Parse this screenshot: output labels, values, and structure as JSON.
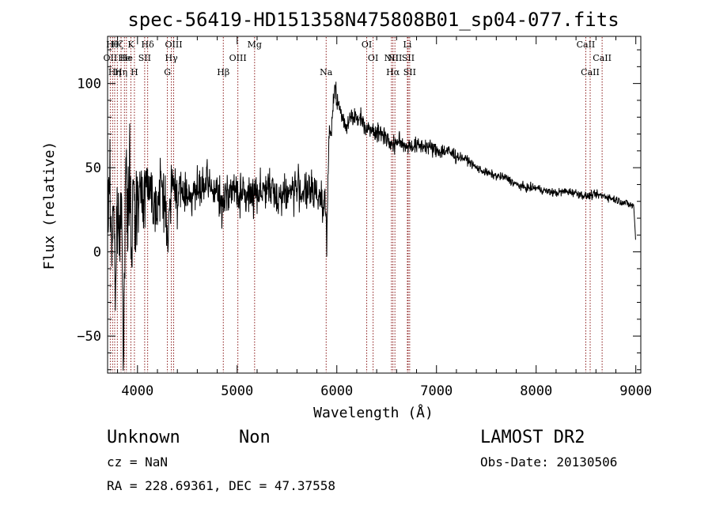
{
  "chart_data": {
    "type": "line",
    "title": "spec-56419-HD151358N475808B01_sp04-077.fits",
    "xlabel": "Wavelength (Å)",
    "ylabel": "Flux (relative)",
    "xlim": [
      3700,
      9050
    ],
    "ylim": [
      -72,
      128
    ],
    "xticks": [
      4000,
      5000,
      6000,
      7000,
      8000,
      9000
    ],
    "yticks": [
      -50,
      0,
      50,
      100
    ],
    "grid": false,
    "series_color": "#000000",
    "line_color": "#8b1a1a",
    "spectrum_anchors": [
      [
        3700,
        15
      ],
      [
        3720,
        45
      ],
      [
        3740,
        5
      ],
      [
        3760,
        35
      ],
      [
        3780,
        -30
      ],
      [
        3800,
        30
      ],
      [
        3820,
        0
      ],
      [
        3840,
        45
      ],
      [
        3860,
        -60
      ],
      [
        3880,
        40
      ],
      [
        3900,
        20
      ],
      [
        3920,
        50
      ],
      [
        3940,
        -5
      ],
      [
        3960,
        35
      ],
      [
        3980,
        15
      ],
      [
        4000,
        40
      ],
      [
        4050,
        30
      ],
      [
        4100,
        45
      ],
      [
        4150,
        32
      ],
      [
        4200,
        28
      ],
      [
        4250,
        42
      ],
      [
        4300,
        10
      ],
      [
        4350,
        40
      ],
      [
        4400,
        35
      ],
      [
        4500,
        35
      ],
      [
        4600,
        35
      ],
      [
        4700,
        40
      ],
      [
        4800,
        35
      ],
      [
        4860,
        25
      ],
      [
        4900,
        38
      ],
      [
        5000,
        35
      ],
      [
        5100,
        33
      ],
      [
        5200,
        36
      ],
      [
        5300,
        38
      ],
      [
        5400,
        33
      ],
      [
        5500,
        35
      ],
      [
        5600,
        38
      ],
      [
        5700,
        35
      ],
      [
        5800,
        35
      ],
      [
        5880,
        30
      ],
      [
        5900,
        10
      ],
      [
        5920,
        65
      ],
      [
        5950,
        75
      ],
      [
        5980,
        100
      ],
      [
        6000,
        90
      ],
      [
        6050,
        80
      ],
      [
        6100,
        75
      ],
      [
        6150,
        82
      ],
      [
        6200,
        78
      ],
      [
        6250,
        80
      ],
      [
        6300,
        72
      ],
      [
        6350,
        75
      ],
      [
        6400,
        70
      ],
      [
        6450,
        71
      ],
      [
        6500,
        68
      ],
      [
        6560,
        62
      ],
      [
        6600,
        66
      ],
      [
        6700,
        63
      ],
      [
        6800,
        63
      ],
      [
        6900,
        63
      ],
      [
        7000,
        60
      ],
      [
        7100,
        60
      ],
      [
        7200,
        57
      ],
      [
        7300,
        55
      ],
      [
        7400,
        50
      ],
      [
        7500,
        47
      ],
      [
        7600,
        45
      ],
      [
        7700,
        44
      ],
      [
        7800,
        40
      ],
      [
        7900,
        38
      ],
      [
        8000,
        38
      ],
      [
        8100,
        36
      ],
      [
        8200,
        35
      ],
      [
        8300,
        36
      ],
      [
        8400,
        35
      ],
      [
        8500,
        33
      ],
      [
        8600,
        34
      ],
      [
        8700,
        33
      ],
      [
        8800,
        31
      ],
      [
        8900,
        29
      ],
      [
        8980,
        27
      ],
      [
        9000,
        5
      ]
    ],
    "line_markers": [
      {
        "wavelength": 3727,
        "label": "OII",
        "row": 2
      },
      {
        "wavelength": 3750,
        "label": "Hθ",
        "row": 1
      },
      {
        "wavelength": 3771,
        "label": "Hη",
        "row": 3
      },
      {
        "wavelength": 3798,
        "label": "Hζ",
        "row": 1
      },
      {
        "wavelength": 3835,
        "label": "Hη",
        "row": 3
      },
      {
        "wavelength": 3869,
        "label": "He",
        "row": 2
      },
      {
        "wavelength": 3889,
        "label": "He",
        "row": 2
      },
      {
        "wavelength": 3934,
        "label": "K",
        "row": 1
      },
      {
        "wavelength": 3969,
        "label": "H",
        "row": 3
      },
      {
        "wavelength": 4072,
        "label": "SII",
        "row": 2
      },
      {
        "wavelength": 4102,
        "label": "Hδ",
        "row": 1
      },
      {
        "wavelength": 4300,
        "label": "G",
        "row": 3
      },
      {
        "wavelength": 4340,
        "label": "Hγ",
        "row": 2
      },
      {
        "wavelength": 4363,
        "label": "OIII",
        "row": 1
      },
      {
        "wavelength": 4861,
        "label": "Hβ",
        "row": 3
      },
      {
        "wavelength": 5007,
        "label": "OIII",
        "row": 2
      },
      {
        "wavelength": 5175,
        "label": "Mg",
        "row": 1
      },
      {
        "wavelength": 5893,
        "label": "Na",
        "row": 3
      },
      {
        "wavelength": 6300,
        "label": "OI",
        "row": 1
      },
      {
        "wavelength": 6364,
        "label": "OI",
        "row": 2
      },
      {
        "wavelength": 6548,
        "label": "NII",
        "row": 2
      },
      {
        "wavelength": 6563,
        "label": "Hα",
        "row": 3
      },
      {
        "wavelength": 6583,
        "label": "NII",
        "row": 2
      },
      {
        "wavelength": 6708,
        "label": "Li",
        "row": 1
      },
      {
        "wavelength": 6716,
        "label": "SII",
        "row": 2
      },
      {
        "wavelength": 6731,
        "label": "SII",
        "row": 3
      },
      {
        "wavelength": 8498,
        "label": "CaII",
        "row": 1
      },
      {
        "wavelength": 8542,
        "label": "CaII",
        "row": 3
      },
      {
        "wavelength": 8662,
        "label": "CaII",
        "row": 2
      }
    ]
  },
  "info": {
    "object_class": "Unknown",
    "subclass": "Non",
    "cz": "cz = NaN",
    "coords": "RA = 228.69361, DEC =  47.37558",
    "survey": "LAMOST DR2",
    "obs_date": "Obs-Date: 20130506"
  }
}
